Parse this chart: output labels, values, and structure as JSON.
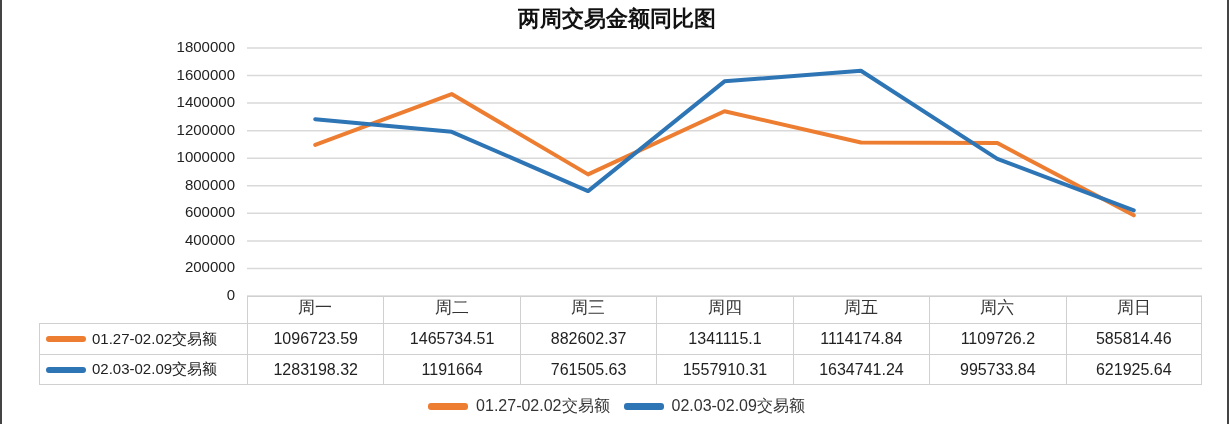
{
  "chart_data": {
    "type": "line",
    "title": "两周交易金额同比图",
    "categories": [
      "周一",
      "周二",
      "周三",
      "周四",
      "周五",
      "周六",
      "周日"
    ],
    "series": [
      {
        "name": "01.27-02.02交易额",
        "color": "#ed7d31",
        "values": [
          1096723.59,
          1465734.51,
          882602.37,
          1341115.1,
          1114174.84,
          1109726.2,
          585814.46
        ]
      },
      {
        "name": "02.03-02.09交易额",
        "color": "#2e75b6",
        "values": [
          1283198.32,
          1191664,
          761505.63,
          1557910.31,
          1634741.24,
          995733.84,
          621925.64
        ]
      }
    ],
    "ylim": [
      0,
      1800000
    ],
    "yticks": [
      0,
      200000,
      400000,
      600000,
      800000,
      1000000,
      1200000,
      1400000,
      1600000,
      1800000
    ],
    "grid": "y",
    "legend": "bottom",
    "data_labels": true
  }
}
